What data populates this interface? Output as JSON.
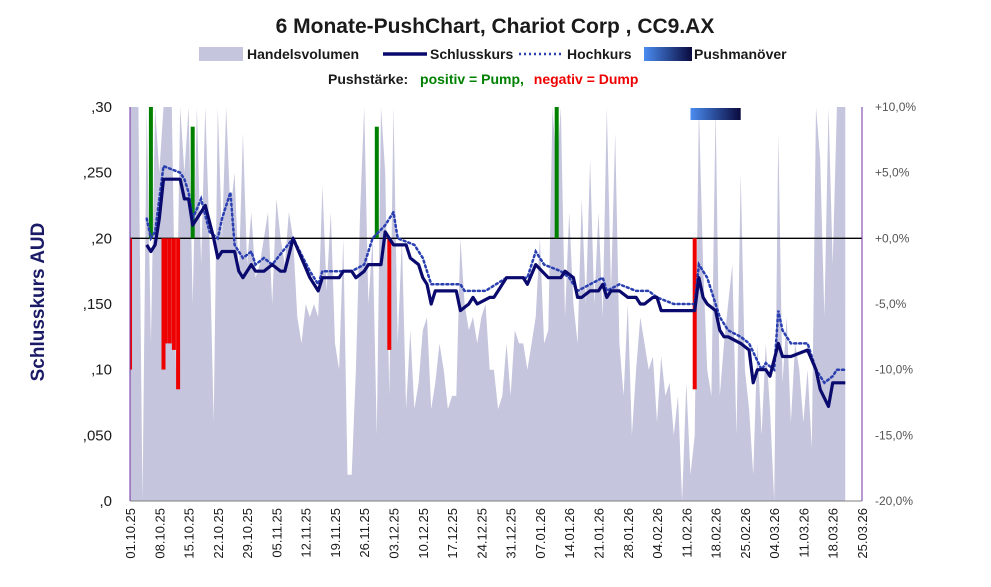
{
  "chart_data": {
    "type": "line",
    "title": "6 Monate-PushChart, Chariot Corp , CC9.AX",
    "ylabel": "Schlusskurs AUD",
    "legend": {
      "items": [
        "Handelsvolumen",
        "Schlusskurs",
        "Hochkurs",
        "Pushmanöver"
      ],
      "pushstaerke_label": "Pushstärke:",
      "positiv_label": "positiv = Pump,",
      "negativ_label": "negativ = Dump"
    },
    "colors": {
      "volume": "#c5c5dd",
      "close": "#0a0a6e",
      "high": "#2a3fb0",
      "pump": "#008000",
      "dump": "#ee0000",
      "positiv_text": "#008000",
      "negativ_text": "#ee0000",
      "axis_right": "#7030a0"
    },
    "y_ticks": [
      ",0",
      ",050",
      ",10",
      ",150",
      ",20",
      ",250",
      ",30"
    ],
    "y2_ticks": [
      "-20,0%",
      "-15,0%",
      "-10,0%",
      "-5,0%",
      "+0,0%",
      "+5,0%",
      "+10,0%"
    ],
    "ylim": [
      0,
      0.3
    ],
    "y2lim": [
      -20,
      10
    ],
    "x_ticks": [
      "01.10.25",
      "08.10.25",
      "15.10.25",
      "22.10.25",
      "29.10.25",
      "05.11.25",
      "12.11.25",
      "19.11.25",
      "26.11.25",
      "03.12.25",
      "10.12.25",
      "17.12.25",
      "24.12.25",
      "31.12.25",
      "07.01.26",
      "14.01.26",
      "21.01.26",
      "28.01.26",
      "04.02.26",
      "11.02.26",
      "18.02.26",
      "25.02.26",
      "04.03.26",
      "11.03.26",
      "18.03.26",
      "25.03.26"
    ],
    "x_range_days": [
      0,
      175
    ],
    "close": [
      [
        4,
        0.195
      ],
      [
        5,
        0.19
      ],
      [
        6,
        0.195
      ],
      [
        7,
        0.215
      ],
      [
        8,
        0.245
      ],
      [
        12,
        0.245
      ],
      [
        13,
        0.23
      ],
      [
        14,
        0.23
      ],
      [
        15,
        0.21
      ],
      [
        18,
        0.225
      ],
      [
        20,
        0.2
      ],
      [
        21,
        0.185
      ],
      [
        22,
        0.19
      ],
      [
        25,
        0.19
      ],
      [
        26,
        0.175
      ],
      [
        27,
        0.17
      ],
      [
        29,
        0.18
      ],
      [
        30,
        0.175
      ],
      [
        32,
        0.175
      ],
      [
        34,
        0.18
      ],
      [
        36,
        0.175
      ],
      [
        37,
        0.175
      ],
      [
        39,
        0.2
      ],
      [
        43,
        0.17
      ],
      [
        45,
        0.16
      ],
      [
        46,
        0.17
      ],
      [
        50,
        0.17
      ],
      [
        51,
        0.175
      ],
      [
        53,
        0.175
      ],
      [
        54,
        0.17
      ],
      [
        56,
        0.175
      ],
      [
        57,
        0.18
      ],
      [
        60,
        0.18
      ],
      [
        61,
        0.205
      ],
      [
        62,
        0.2
      ],
      [
        63,
        0.195
      ],
      [
        66,
        0.195
      ],
      [
        67,
        0.185
      ],
      [
        69,
        0.18
      ],
      [
        70,
        0.17
      ],
      [
        71,
        0.165
      ],
      [
        72,
        0.15
      ],
      [
        73,
        0.16
      ],
      [
        77,
        0.16
      ],
      [
        78,
        0.16
      ],
      [
        79,
        0.145
      ],
      [
        81,
        0.15
      ],
      [
        82,
        0.155
      ],
      [
        83,
        0.15
      ],
      [
        86,
        0.155
      ],
      [
        87,
        0.155
      ],
      [
        88,
        0.16
      ],
      [
        90,
        0.17
      ],
      [
        94,
        0.17
      ],
      [
        95,
        0.165
      ],
      [
        97,
        0.18
      ],
      [
        100,
        0.17
      ],
      [
        103,
        0.17
      ],
      [
        104,
        0.175
      ],
      [
        106,
        0.17
      ],
      [
        107,
        0.155
      ],
      [
        108,
        0.155
      ],
      [
        110,
        0.16
      ],
      [
        112,
        0.16
      ],
      [
        113,
        0.165
      ],
      [
        114,
        0.155
      ],
      [
        115,
        0.16
      ],
      [
        117,
        0.16
      ],
      [
        119,
        0.155
      ],
      [
        121,
        0.155
      ],
      [
        122,
        0.15
      ],
      [
        123,
        0.15
      ],
      [
        125,
        0.155
      ],
      [
        126,
        0.155
      ],
      [
        127,
        0.145
      ],
      [
        130,
        0.145
      ],
      [
        132,
        0.145
      ],
      [
        134,
        0.145
      ],
      [
        135,
        0.145
      ],
      [
        136,
        0.17
      ],
      [
        137,
        0.155
      ],
      [
        138,
        0.15
      ],
      [
        140,
        0.145
      ],
      [
        141,
        0.13
      ],
      [
        142,
        0.125
      ],
      [
        143,
        0.125
      ],
      [
        146,
        0.12
      ],
      [
        148,
        0.115
      ],
      [
        149,
        0.09
      ],
      [
        150,
        0.1
      ],
      [
        152,
        0.1
      ],
      [
        153,
        0.095
      ],
      [
        155,
        0.12
      ],
      [
        156,
        0.11
      ],
      [
        158,
        0.11
      ],
      [
        162,
        0.115
      ],
      [
        164,
        0.1
      ],
      [
        165,
        0.085
      ],
      [
        167,
        0.072
      ],
      [
        168,
        0.09
      ],
      [
        169,
        0.09
      ],
      [
        171,
        0.09
      ]
    ],
    "high": [
      [
        4,
        0.215
      ],
      [
        5,
        0.2
      ],
      [
        6,
        0.205
      ],
      [
        7,
        0.23
      ],
      [
        8,
        0.255
      ],
      [
        12,
        0.25
      ],
      [
        13,
        0.245
      ],
      [
        14,
        0.235
      ],
      [
        15,
        0.215
      ],
      [
        17,
        0.23
      ],
      [
        19,
        0.205
      ],
      [
        21,
        0.2
      ],
      [
        22,
        0.215
      ],
      [
        24,
        0.235
      ],
      [
        25,
        0.195
      ],
      [
        27,
        0.185
      ],
      [
        29,
        0.19
      ],
      [
        30,
        0.18
      ],
      [
        32,
        0.185
      ],
      [
        34,
        0.18
      ],
      [
        39,
        0.2
      ],
      [
        43,
        0.175
      ],
      [
        45,
        0.165
      ],
      [
        46,
        0.175
      ],
      [
        50,
        0.175
      ],
      [
        53,
        0.175
      ],
      [
        56,
        0.18
      ],
      [
        57,
        0.19
      ],
      [
        58,
        0.2
      ],
      [
        61,
        0.21
      ],
      [
        63,
        0.22
      ],
      [
        64,
        0.2
      ],
      [
        68,
        0.195
      ],
      [
        70,
        0.185
      ],
      [
        72,
        0.165
      ],
      [
        73,
        0.165
      ],
      [
        77,
        0.165
      ],
      [
        79,
        0.165
      ],
      [
        80,
        0.16
      ],
      [
        85,
        0.16
      ],
      [
        90,
        0.17
      ],
      [
        95,
        0.17
      ],
      [
        97,
        0.19
      ],
      [
        99,
        0.18
      ],
      [
        103,
        0.175
      ],
      [
        105,
        0.17
      ],
      [
        107,
        0.16
      ],
      [
        110,
        0.165
      ],
      [
        113,
        0.17
      ],
      [
        114,
        0.16
      ],
      [
        117,
        0.165
      ],
      [
        121,
        0.16
      ],
      [
        124,
        0.16
      ],
      [
        126,
        0.155
      ],
      [
        130,
        0.15
      ],
      [
        135,
        0.15
      ],
      [
        136,
        0.18
      ],
      [
        138,
        0.17
      ],
      [
        140,
        0.15
      ],
      [
        141,
        0.14
      ],
      [
        143,
        0.13
      ],
      [
        146,
        0.125
      ],
      [
        148,
        0.12
      ],
      [
        151,
        0.1
      ],
      [
        152,
        0.105
      ],
      [
        154,
        0.1
      ],
      [
        155,
        0.145
      ],
      [
        156,
        0.13
      ],
      [
        158,
        0.12
      ],
      [
        162,
        0.12
      ],
      [
        164,
        0.1
      ],
      [
        166,
        0.09
      ],
      [
        168,
        0.095
      ],
      [
        169,
        0.1
      ],
      [
        171,
        0.1
      ]
    ],
    "push_bars": [
      [
        0,
        -10
      ],
      [
        5,
        10
      ],
      [
        8,
        -10
      ],
      [
        8.5,
        -8
      ],
      [
        9.5,
        -8
      ],
      [
        10.5,
        -8.5
      ],
      [
        11.5,
        -11.5
      ],
      [
        15,
        8.5
      ],
      [
        59,
        8.5
      ],
      [
        62,
        -8.5
      ],
      [
        102,
        10
      ],
      [
        135,
        -11.5
      ]
    ],
    "pushmanoever_span": [
      134,
      146
    ],
    "volume": [
      [
        0,
        0.3
      ],
      [
        2,
        0.3
      ],
      [
        3,
        0.0
      ],
      [
        4,
        0.3
      ],
      [
        5,
        0.12
      ],
      [
        6,
        0.3
      ],
      [
        7,
        0.25
      ],
      [
        8,
        0.3
      ],
      [
        9,
        0.3
      ],
      [
        10,
        0.3
      ],
      [
        11,
        0.1
      ],
      [
        12,
        0.3
      ],
      [
        13,
        0.25
      ],
      [
        14,
        0.3
      ],
      [
        15,
        0.15
      ],
      [
        16,
        0.3
      ],
      [
        17,
        0.18
      ],
      [
        18,
        0.3
      ],
      [
        19,
        0.2
      ],
      [
        20,
        0.06
      ],
      [
        21,
        0.3
      ],
      [
        22,
        0.2
      ],
      [
        23,
        0.3
      ],
      [
        24,
        0.22
      ],
      [
        25,
        0.25
      ],
      [
        26,
        0.17
      ],
      [
        27,
        0.28
      ],
      [
        28,
        0.18
      ],
      [
        29,
        0.22
      ],
      [
        30,
        0.17
      ],
      [
        31,
        0.18
      ],
      [
        32,
        0.2
      ],
      [
        33,
        0.22
      ],
      [
        34,
        0.15
      ],
      [
        35,
        0.23
      ],
      [
        36,
        0.2
      ],
      [
        37,
        0.18
      ],
      [
        38,
        0.22
      ],
      [
        39,
        0.2
      ],
      [
        40,
        0.14
      ],
      [
        41,
        0.12
      ],
      [
        42,
        0.15
      ],
      [
        43,
        0.14
      ],
      [
        44,
        0.15
      ],
      [
        45,
        0.14
      ],
      [
        46,
        0.24
      ],
      [
        47,
        0.16
      ],
      [
        48,
        0.22
      ],
      [
        49,
        0.12
      ],
      [
        50,
        0.1
      ],
      [
        51,
        0.2
      ],
      [
        52,
        0.02
      ],
      [
        53,
        0.02
      ],
      [
        54,
        0.1
      ],
      [
        55,
        0.22
      ],
      [
        56,
        0.3
      ],
      [
        57,
        0.15
      ],
      [
        58,
        0.2
      ],
      [
        59,
        0.05
      ],
      [
        60,
        0.3
      ],
      [
        61,
        0.25
      ],
      [
        62,
        0.08
      ],
      [
        63,
        0.3
      ],
      [
        64,
        0.12
      ],
      [
        65,
        0.2
      ],
      [
        66,
        0.07
      ],
      [
        67,
        0.13
      ],
      [
        68,
        0.07
      ],
      [
        69,
        0.09
      ],
      [
        70,
        0.13
      ],
      [
        71,
        0.14
      ],
      [
        72,
        0.07
      ],
      [
        73,
        0.09
      ],
      [
        74,
        0.12
      ],
      [
        75,
        0.1
      ],
      [
        76,
        0.07
      ],
      [
        77,
        0.08
      ],
      [
        78,
        0.08
      ],
      [
        79,
        0.2
      ],
      [
        80,
        0.15
      ],
      [
        81,
        0.13
      ],
      [
        82,
        0.14
      ],
      [
        83,
        0.12
      ],
      [
        84,
        0.14
      ],
      [
        85,
        0.15
      ],
      [
        86,
        0.1
      ],
      [
        87,
        0.1
      ],
      [
        88,
        0.07
      ],
      [
        89,
        0.08
      ],
      [
        90,
        0.12
      ],
      [
        91,
        0.08
      ],
      [
        92,
        0.13
      ],
      [
        93,
        0.12
      ],
      [
        94,
        0.12
      ],
      [
        95,
        0.1
      ],
      [
        96,
        0.12
      ],
      [
        97,
        0.14
      ],
      [
        98,
        0.2
      ],
      [
        99,
        0.12
      ],
      [
        100,
        0.13
      ],
      [
        101,
        0.3
      ],
      [
        102,
        0.25
      ],
      [
        103,
        0.3
      ],
      [
        104,
        0.14
      ],
      [
        105,
        0.22
      ],
      [
        106,
        0.15
      ],
      [
        107,
        0.12
      ],
      [
        108,
        0.23
      ],
      [
        109,
        0.15
      ],
      [
        110,
        0.26
      ],
      [
        111,
        0.15
      ],
      [
        112,
        0.22
      ],
      [
        113,
        0.14
      ],
      [
        114,
        0.3
      ],
      [
        115,
        0.16
      ],
      [
        116,
        0.28
      ],
      [
        117,
        0.12
      ],
      [
        118,
        0.08
      ],
      [
        119,
        0.15
      ],
      [
        120,
        0.05
      ],
      [
        121,
        0.1
      ],
      [
        122,
        0.14
      ],
      [
        123,
        0.12
      ],
      [
        124,
        0.1
      ],
      [
        125,
        0.11
      ],
      [
        126,
        0.06
      ],
      [
        127,
        0.11
      ],
      [
        128,
        0.08
      ],
      [
        129,
        0.09
      ],
      [
        130,
        0.05
      ],
      [
        131,
        0.08
      ],
      [
        132,
        0.0
      ],
      [
        133,
        0.09
      ],
      [
        134,
        0.02
      ],
      [
        135,
        0.05
      ],
      [
        136,
        0.3
      ],
      [
        137,
        0.18
      ],
      [
        138,
        0.1
      ],
      [
        139,
        0.08
      ],
      [
        140,
        0.3
      ],
      [
        141,
        0.08
      ],
      [
        142,
        0.12
      ],
      [
        143,
        0.15
      ],
      [
        144,
        0.18
      ],
      [
        145,
        0.05
      ],
      [
        146,
        0.25
      ],
      [
        147,
        0.1
      ],
      [
        148,
        0.07
      ],
      [
        149,
        0.02
      ],
      [
        150,
        0.12
      ],
      [
        151,
        0.05
      ],
      [
        152,
        0.12
      ],
      [
        153,
        0.07
      ],
      [
        154,
        0.0
      ],
      [
        155,
        0.28
      ],
      [
        156,
        0.09
      ],
      [
        157,
        0.14
      ],
      [
        158,
        0.06
      ],
      [
        159,
        0.12
      ],
      [
        160,
        0.1
      ],
      [
        161,
        0.06
      ],
      [
        162,
        0.1
      ],
      [
        163,
        0.04
      ],
      [
        164,
        0.3
      ],
      [
        165,
        0.26
      ],
      [
        166,
        0.14
      ],
      [
        167,
        0.3
      ],
      [
        168,
        0.18
      ],
      [
        169,
        0.3
      ],
      [
        170,
        0.3
      ],
      [
        171,
        0.3
      ]
    ]
  }
}
